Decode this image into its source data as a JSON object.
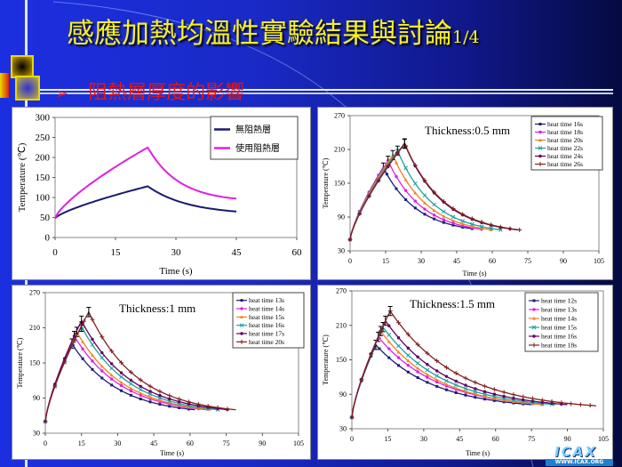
{
  "slide": {
    "title": "感應加熱均溫性實驗結果與討論",
    "page": "1/4",
    "subtitle": "阻熱層厚度的影響",
    "logo": {
      "name": "ICAX",
      "url": "WWW.ICAX.ORG"
    }
  },
  "chart_data": [
    {
      "type": "line",
      "title": "",
      "xlabel": "Time (s)",
      "ylabel": "Temperature (℃)",
      "xlim": [
        0,
        60
      ],
      "ylim": [
        0,
        300
      ],
      "xticks": [
        0,
        15,
        30,
        45,
        60
      ],
      "yticks": [
        0,
        50,
        100,
        150,
        200,
        250,
        300
      ],
      "legend": "top-right",
      "annotation": "",
      "series": [
        {
          "name": "無阻熱層",
          "color": "#1a1a6e",
          "start": 48,
          "peak_time": 23,
          "peak": 128,
          "end_time": 45,
          "end": 65,
          "marker": "none"
        },
        {
          "name": "使用阻熱層",
          "color": "#e020e0",
          "start": 48,
          "peak_time": 23,
          "peak": 225,
          "end_time": 45,
          "end": 97,
          "marker": "none"
        }
      ]
    },
    {
      "type": "line",
      "xlabel": "Time (s)",
      "ylabel": "Temperature (℃)",
      "xlim": [
        0,
        105
      ],
      "ylim": [
        30,
        270
      ],
      "xticks": [
        0,
        15,
        30,
        45,
        60,
        75,
        90,
        105
      ],
      "yticks": [
        30,
        90,
        150,
        210,
        270
      ],
      "legend": "top-right",
      "annotation": "Thickness:0.5 mm",
      "series": [
        {
          "name": "heat time 16s",
          "color": "#1a1a7a",
          "start": 50,
          "peak_time": 14,
          "peak": 178,
          "end_time": 52,
          "end": 69,
          "marker": "square"
        },
        {
          "name": "heat time 18s",
          "color": "#e020e0",
          "start": 50,
          "peak_time": 16,
          "peak": 190,
          "end_time": 56,
          "end": 68,
          "marker": "circle"
        },
        {
          "name": "heat time 20s",
          "color": "#f08020",
          "start": 50,
          "peak_time": 18,
          "peak": 200,
          "end_time": 60,
          "end": 67,
          "marker": "triangle"
        },
        {
          "name": "heat time 22s",
          "color": "#20a0a0",
          "start": 50,
          "peak_time": 20,
          "peak": 208,
          "end_time": 64,
          "end": 67,
          "marker": "x"
        },
        {
          "name": "heat time 24s",
          "color": "#600060",
          "start": 50,
          "peak_time": 23,
          "peak": 220,
          "end_time": 71,
          "end": 67,
          "marker": "circle"
        },
        {
          "name": "heat time 26s",
          "color": "#802020",
          "start": 50,
          "peak_time": 23,
          "peak": 221,
          "end_time": 72,
          "end": 67,
          "marker": "plus"
        }
      ]
    },
    {
      "type": "line",
      "xlabel": "Time (s)",
      "ylabel": "Temperature (℃)",
      "xlim": [
        0,
        105
      ],
      "ylim": [
        30,
        270
      ],
      "xticks": [
        0,
        15,
        30,
        45,
        60,
        75,
        90,
        105
      ],
      "yticks": [
        30,
        90,
        150,
        210,
        270
      ],
      "legend": "top-right",
      "annotation": "Thickness:1 mm",
      "series": [
        {
          "name": "heat time 13s",
          "color": "#1a1a7a",
          "start": 50,
          "peak_time": 11,
          "peak": 183,
          "end_time": 62,
          "end": 70,
          "marker": "square"
        },
        {
          "name": "heat time 14s",
          "color": "#e020e0",
          "start": 50,
          "peak_time": 12,
          "peak": 196,
          "end_time": 67,
          "end": 70,
          "marker": "circle"
        },
        {
          "name": "heat time 15s",
          "color": "#f08020",
          "start": 50,
          "peak_time": 13,
          "peak": 203,
          "end_time": 69,
          "end": 70,
          "marker": "triangle"
        },
        {
          "name": "heat time 16s",
          "color": "#20a0a0",
          "start": 50,
          "peak_time": 15,
          "peak": 212,
          "end_time": 72,
          "end": 70,
          "marker": "x"
        },
        {
          "name": "heat time 17s",
          "color": "#600060",
          "start": 50,
          "peak_time": 15,
          "peak": 222,
          "end_time": 76,
          "end": 70,
          "marker": "circle"
        },
        {
          "name": "heat time 20s",
          "color": "#802020",
          "start": 50,
          "peak_time": 18,
          "peak": 237,
          "end_time": 79,
          "end": 70,
          "marker": "plus"
        }
      ]
    },
    {
      "type": "line",
      "xlabel": "Time (s)",
      "ylabel": "Temperature (℃)",
      "xlim": [
        0,
        105
      ],
      "ylim": [
        30,
        270
      ],
      "xticks": [
        0,
        15,
        30,
        45,
        60,
        75,
        90,
        105
      ],
      "yticks": [
        30,
        90,
        150,
        210,
        270
      ],
      "legend": "top-right",
      "annotation": "Thickness:1.5 mm",
      "series": [
        {
          "name": "heat time 12s",
          "color": "#1a1a7a",
          "start": 50,
          "peak_time": 10,
          "peak": 176,
          "end_time": 75,
          "end": 72,
          "marker": "square"
        },
        {
          "name": "heat time 13s",
          "color": "#e020e0",
          "start": 50,
          "peak_time": 11,
          "peak": 190,
          "end_time": 80,
          "end": 72,
          "marker": "circle"
        },
        {
          "name": "heat time 14s",
          "color": "#f08020",
          "start": 50,
          "peak_time": 12,
          "peak": 200,
          "end_time": 80,
          "end": 72,
          "marker": "triangle"
        },
        {
          "name": "heat time 15s",
          "color": "#20a0a0",
          "start": 50,
          "peak_time": 13,
          "peak": 207,
          "end_time": 85,
          "end": 72,
          "marker": "x"
        },
        {
          "name": "heat time 16s",
          "color": "#600060",
          "start": 50,
          "peak_time": 14,
          "peak": 218,
          "end_time": 90,
          "end": 72,
          "marker": "circle"
        },
        {
          "name": "heat time 18s",
          "color": "#802020",
          "start": 50,
          "peak_time": 16,
          "peak": 235,
          "end_time": 102,
          "end": 70,
          "marker": "plus"
        }
      ]
    }
  ]
}
